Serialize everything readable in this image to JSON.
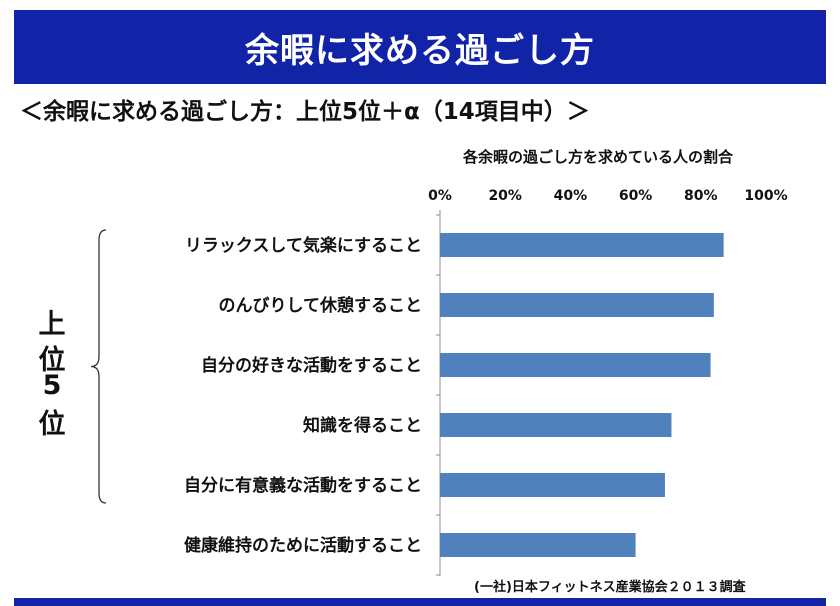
{
  "header": {
    "title": "余暇に求める過ごし方"
  },
  "subtitle": "＜余暇に求める過ごし方：上位5位＋α（14項目中）＞",
  "side_label": [
    "上",
    "位",
    "5",
    "位"
  ],
  "source": "(一社)日本フィットネス産業協会２０１３調査",
  "colors": {
    "header_bg": "#1124a8",
    "bar": "#4f81bd"
  },
  "chart_data": {
    "type": "bar",
    "orientation": "horizontal",
    "title": "各余暇の過ごし方を求めている人の割合",
    "xlim": [
      0,
      100
    ],
    "x_ticks": [
      "0%",
      "20%",
      "40%",
      "60%",
      "80%",
      "100%"
    ],
    "categories": [
      "リラックスして気楽にすること",
      "のんびりして休憩すること",
      "自分の好きな活動をすること",
      "知識を得ること",
      "自分に有意義な活動をすること",
      "健康維持のために活動すること"
    ],
    "values": [
      87,
      84,
      83,
      71,
      69,
      60
    ],
    "grid": false
  }
}
